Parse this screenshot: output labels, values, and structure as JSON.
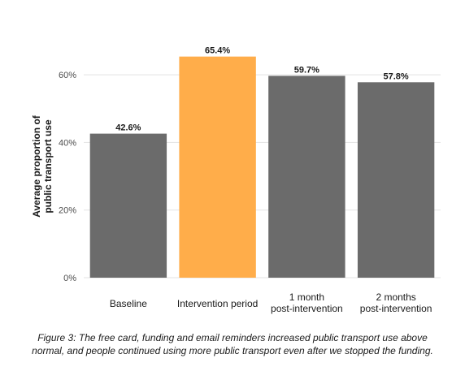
{
  "chart_data": {
    "type": "bar",
    "title": "",
    "xlabel": "",
    "ylabel_lines": [
      "Average proportion of",
      "public transport use"
    ],
    "categories": [
      [
        "Baseline"
      ],
      [
        "Intervention period"
      ],
      [
        "1 month",
        "post-intervention"
      ],
      [
        "2 months",
        "post-intervention"
      ]
    ],
    "values": [
      42.6,
      65.4,
      59.7,
      57.8
    ],
    "value_labels": [
      "42.6%",
      "65.4%",
      "59.7%",
      "57.8%"
    ],
    "colors": [
      "#6b6b6b",
      "#ffad4a",
      "#6b6b6b",
      "#6b6b6b"
    ],
    "ylim": [
      0,
      67
    ],
    "yticks": [
      0,
      20,
      40,
      60
    ],
    "ytick_labels": [
      "0%",
      "20%",
      "40%",
      "60%"
    ],
    "grid": true,
    "legend": "none"
  },
  "caption": {
    "line1": "Figure 3: The free card, funding and email reminders increased public transport use above",
    "line2": "normal, and people continued using more public transport even after we stopped the funding."
  }
}
